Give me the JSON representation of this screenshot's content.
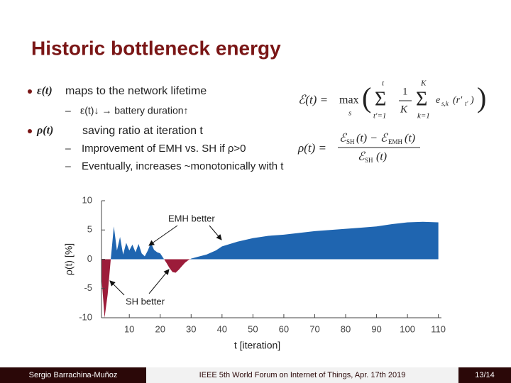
{
  "slide": {
    "title": "Historic bottleneck energy",
    "bullets": [
      {
        "term": "ε(t)",
        "text": "maps to the network lifetime",
        "sub": [
          "ε(t)↓ → battery duration↑"
        ]
      },
      {
        "term": "ρ(t)",
        "text": "saving ratio at iteration t",
        "sub": [
          "Improvement of EMH vs. SH if ρ>0",
          "Eventually, increases ~monotonically with t"
        ]
      }
    ],
    "formula1": {
      "lhs": "ℰ(t) =",
      "op": "max",
      "op_sub": "s",
      "sum1_top": "t",
      "sum1_bottom": "t′=1",
      "frac_num": "1",
      "frac_den": "K",
      "sum2_top": "K",
      "sum2_bottom": "k=1",
      "term": "e",
      "term_sub": "s,k",
      "arg": "(r′",
      "arg_sub": "t′",
      "arg_close": ")"
    },
    "formula2": {
      "lhs": "ρ(t) =",
      "num_a": "ℰ",
      "num_a_sub": "SH",
      "num_b": "(t) − ℰ",
      "num_b_sub": "EMH",
      "num_c": "(t)",
      "den_a": "ℰ",
      "den_a_sub": "SH",
      "den_b": "(t)"
    },
    "footer": {
      "author": "Sergio Barrachina-Muñoz",
      "event": "IEEE 5th World Forum on Internet of Things, Apr. 17th 2019",
      "page": "13/14"
    }
  },
  "chart_data": {
    "type": "area",
    "x_label": "t [iteration]",
    "y_label": "ρ(t) [%]",
    "annotations": [
      "EMH better",
      "SH better"
    ],
    "x": [
      1,
      2,
      3,
      4,
      5,
      6,
      7,
      8,
      9,
      10,
      11,
      12,
      13,
      14,
      15,
      16,
      17,
      18,
      19,
      20,
      21,
      22,
      23,
      24,
      25,
      26,
      27,
      28,
      29,
      30,
      32,
      35,
      38,
      40,
      45,
      50,
      55,
      60,
      65,
      70,
      75,
      80,
      85,
      90,
      95,
      100,
      105,
      110
    ],
    "values": [
      -3,
      -10,
      -6,
      0,
      5.6,
      1.5,
      3.8,
      0.8,
      2.8,
      1.5,
      2.5,
      1.2,
      2.6,
      1,
      0.5,
      1.5,
      2.8,
      1.6,
      1.2,
      1,
      0.2,
      -0.6,
      -1.5,
      -2.2,
      -2.3,
      -1.8,
      -1.2,
      -0.6,
      -0.2,
      0.1,
      0.4,
      0.8,
      1.5,
      2.2,
      3,
      3.6,
      4,
      4.2,
      4.5,
      4.8,
      5,
      5.2,
      5.4,
      5.6,
      6,
      6.3,
      6.4,
      6.3
    ],
    "color": "#1f65b0",
    "negative_color": "#9c1c3a",
    "xlim": [
      1,
      111
    ],
    "ylim": [
      -10,
      10
    ],
    "xticks": [
      10,
      20,
      30,
      40,
      50,
      60,
      70,
      80,
      90,
      100,
      110
    ],
    "yticks": [
      -10,
      -5,
      0,
      5,
      10
    ],
    "grid": false
  }
}
